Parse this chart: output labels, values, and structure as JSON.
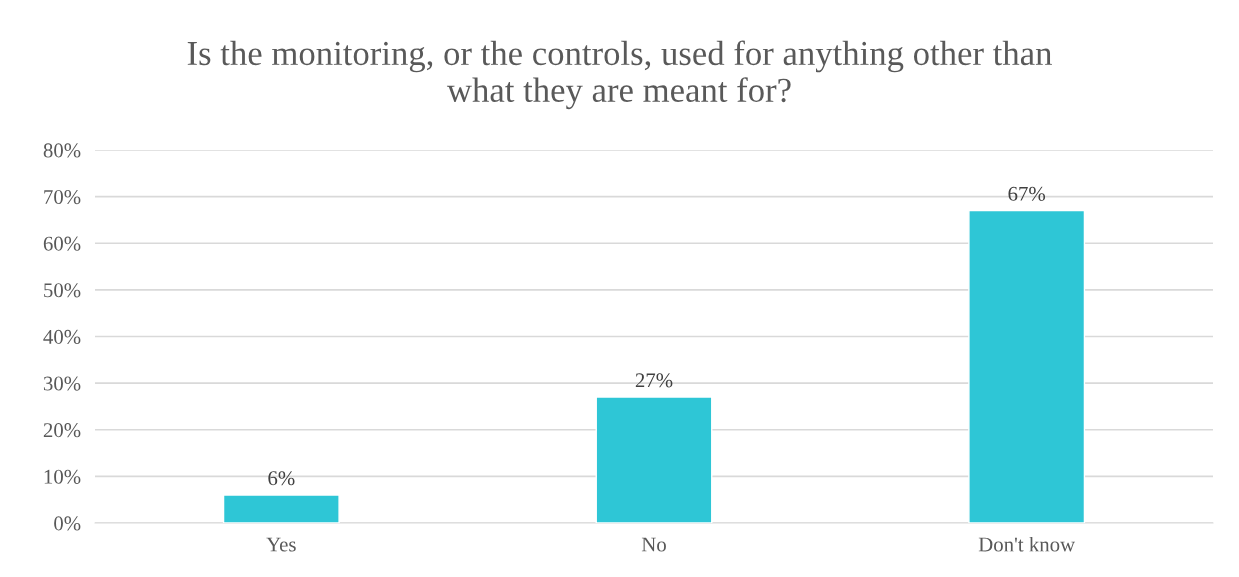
{
  "chart_data": {
    "type": "bar",
    "title": "Is the monitoring, or the controls, used for anything other than\nwhat they are meant for?",
    "categories": [
      "Yes",
      "No",
      "Don't know"
    ],
    "values": [
      6,
      27,
      67
    ],
    "value_labels": [
      "6%",
      "27%",
      "67%"
    ],
    "color": "#2ec6d6",
    "ylim": [
      0,
      80
    ],
    "yticks": [
      {
        "value": 0,
        "label": "0%"
      },
      {
        "value": 10,
        "label": "10%"
      },
      {
        "value": 20,
        "label": "20%"
      },
      {
        "value": 30,
        "label": "30%"
      },
      {
        "value": 40,
        "label": "40%"
      },
      {
        "value": 50,
        "label": "50%"
      },
      {
        "value": 60,
        "label": "60%"
      },
      {
        "value": 70,
        "label": "70%"
      },
      {
        "value": 80,
        "label": "80%"
      }
    ],
    "grid": "y",
    "legend": false
  }
}
